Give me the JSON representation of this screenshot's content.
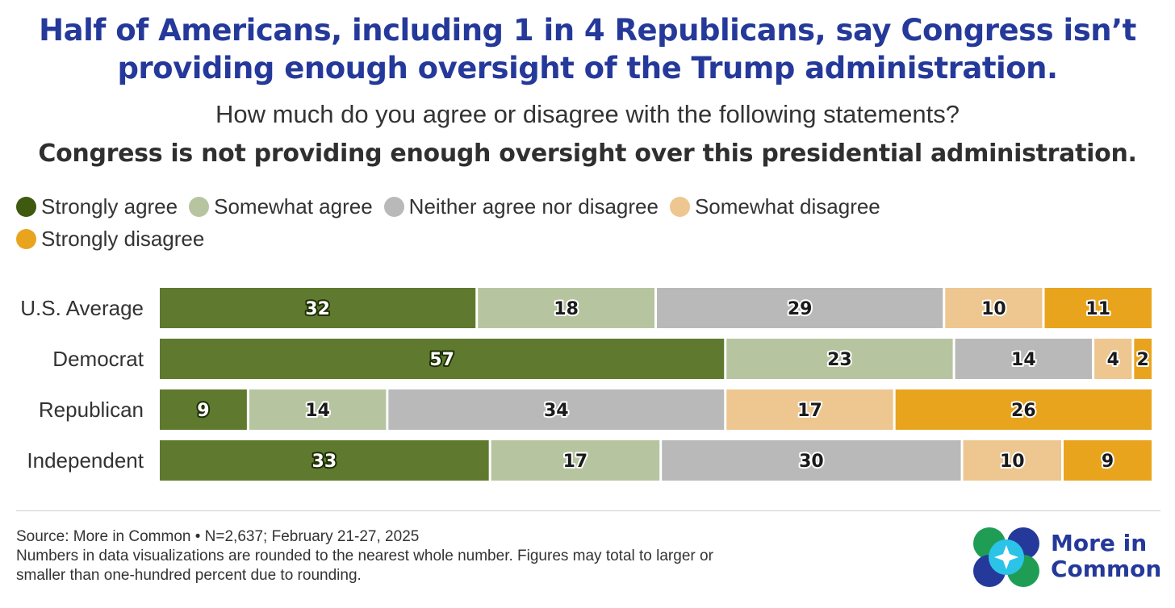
{
  "title": {
    "line1": "Half of Americans, including 1 in 4 Republicans, say Congress isn’t",
    "line2": "providing enough oversight of the Trump administration."
  },
  "question": "How much do you agree or disagree with the following statements?",
  "statement": "Congress is not providing enough oversight over this presidential administration.",
  "colors": {
    "title": "#25399a",
    "strongly_agree": "#5f7a2e",
    "somewhat_agree": "#b6c59f",
    "neither": "#b9b9b9",
    "somewhat_disagree": "#eec690",
    "strongly_disagree": "#e9a41e"
  },
  "legend": [
    {
      "label": "Strongly agree",
      "color": "#3f5a10"
    },
    {
      "label": "Somewhat agree",
      "color": "#b6c59f"
    },
    {
      "label": "Neither agree nor disagree",
      "color": "#b9b9b9"
    },
    {
      "label": "Somewhat disagree",
      "color": "#eec690"
    },
    {
      "label": "Strongly disagree",
      "color": "#e9a41e"
    }
  ],
  "chart_data": {
    "type": "bar",
    "orientation": "horizontal",
    "stacked": true,
    "categories": [
      "U.S. Average",
      "Democrat",
      "Republican",
      "Independent"
    ],
    "series": [
      {
        "name": "Strongly agree",
        "values": [
          32,
          57,
          9,
          33
        ]
      },
      {
        "name": "Somewhat agree",
        "values": [
          18,
          23,
          14,
          17
        ]
      },
      {
        "name": "Neither agree nor disagree",
        "values": [
          29,
          14,
          34,
          30
        ]
      },
      {
        "name": "Somewhat disagree",
        "values": [
          10,
          4,
          17,
          10
        ]
      },
      {
        "name": "Strongly disagree",
        "values": [
          11,
          2,
          26,
          9
        ]
      }
    ],
    "legend_position": "top-left",
    "grid": false
  },
  "source": {
    "line1": "Source: More in Common • N=2,637; February 21-27, 2025",
    "line2": "Numbers in data visualizations are rounded to the nearest whole number. Figures may total to larger or",
    "line3": "smaller than one-hundred percent due to rounding."
  },
  "logo": {
    "line1": "More in",
    "line2": "Common"
  }
}
